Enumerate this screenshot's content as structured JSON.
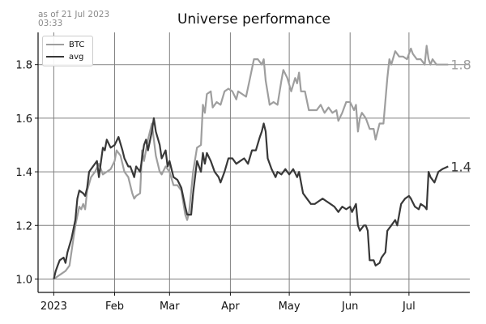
{
  "timestamp": "as of 21 Jul 2023\n03:33",
  "chart_data": {
    "type": "line",
    "title": "Universe performance",
    "xlabel": "",
    "ylabel": "",
    "x_start": "2023-01-01",
    "x_end": "2023-07-21",
    "xlim": [
      "2022-12-24",
      "2023-08-01"
    ],
    "ylim": [
      0.95,
      1.92
    ],
    "x_ticks": [
      {
        "date": "2023-01-01",
        "label": "2023"
      },
      {
        "date": "2023-02-01",
        "label": "Feb"
      },
      {
        "date": "2023-03-01",
        "label": "Mar"
      },
      {
        "date": "2023-04-01",
        "label": "Apr"
      },
      {
        "date": "2023-05-01",
        "label": "May"
      },
      {
        "date": "2023-06-01",
        "label": "Jun"
      },
      {
        "date": "2023-07-01",
        "label": "Jul"
      }
    ],
    "y_ticks": [
      1.0,
      1.2,
      1.4,
      1.6,
      1.8
    ],
    "y_tick_labels": [
      "1.0",
      "1.2",
      "1.4",
      "1.6",
      "1.8"
    ],
    "grid": true,
    "legend_position": "top-left",
    "series": [
      {
        "name": "BTC",
        "color": "#9e9e9e",
        "end_label": "1.8",
        "points": [
          [
            "2023-01-01",
            1.0
          ],
          [
            "2023-01-03",
            1.01
          ],
          [
            "2023-01-05",
            1.02
          ],
          [
            "2023-01-07",
            1.03
          ],
          [
            "2023-01-09",
            1.05
          ],
          [
            "2023-01-10",
            1.1
          ],
          [
            "2023-01-12",
            1.2
          ],
          [
            "2023-01-14",
            1.27
          ],
          [
            "2023-01-15",
            1.26
          ],
          [
            "2023-01-16",
            1.28
          ],
          [
            "2023-01-17",
            1.26
          ],
          [
            "2023-01-18",
            1.33
          ],
          [
            "2023-01-20",
            1.38
          ],
          [
            "2023-01-22",
            1.4
          ],
          [
            "2023-01-24",
            1.43
          ],
          [
            "2023-01-26",
            1.39
          ],
          [
            "2023-01-28",
            1.4
          ],
          [
            "2023-01-30",
            1.41
          ],
          [
            "2023-02-01",
            1.44
          ],
          [
            "2023-02-02",
            1.48
          ],
          [
            "2023-02-04",
            1.46
          ],
          [
            "2023-02-06",
            1.4
          ],
          [
            "2023-02-08",
            1.38
          ],
          [
            "2023-02-10",
            1.32
          ],
          [
            "2023-02-11",
            1.3
          ],
          [
            "2023-02-12",
            1.31
          ],
          [
            "2023-02-14",
            1.32
          ],
          [
            "2023-02-15",
            1.48
          ],
          [
            "2023-02-16",
            1.44
          ],
          [
            "2023-02-18",
            1.52
          ],
          [
            "2023-02-20",
            1.58
          ],
          [
            "2023-02-22",
            1.46
          ],
          [
            "2023-02-24",
            1.4
          ],
          [
            "2023-02-25",
            1.39
          ],
          [
            "2023-02-27",
            1.42
          ],
          [
            "2023-03-01",
            1.4
          ],
          [
            "2023-03-03",
            1.35
          ],
          [
            "2023-03-05",
            1.35
          ],
          [
            "2023-03-07",
            1.33
          ],
          [
            "2023-03-09",
            1.24
          ],
          [
            "2023-03-10",
            1.22
          ],
          [
            "2023-03-11",
            1.25
          ],
          [
            "2023-03-13",
            1.4
          ],
          [
            "2023-03-15",
            1.49
          ],
          [
            "2023-03-17",
            1.5
          ],
          [
            "2023-03-18",
            1.65
          ],
          [
            "2023-03-19",
            1.62
          ],
          [
            "2023-03-20",
            1.69
          ],
          [
            "2023-03-22",
            1.7
          ],
          [
            "2023-03-23",
            1.64
          ],
          [
            "2023-03-25",
            1.66
          ],
          [
            "2023-03-27",
            1.65
          ],
          [
            "2023-03-29",
            1.7
          ],
          [
            "2023-03-31",
            1.71
          ],
          [
            "2023-04-02",
            1.7
          ],
          [
            "2023-04-04",
            1.67
          ],
          [
            "2023-04-05",
            1.7
          ],
          [
            "2023-04-07",
            1.69
          ],
          [
            "2023-04-09",
            1.68
          ],
          [
            "2023-04-11",
            1.75
          ],
          [
            "2023-04-13",
            1.82
          ],
          [
            "2023-04-15",
            1.82
          ],
          [
            "2023-04-17",
            1.8
          ],
          [
            "2023-04-18",
            1.82
          ],
          [
            "2023-04-19",
            1.74
          ],
          [
            "2023-04-21",
            1.65
          ],
          [
            "2023-04-23",
            1.66
          ],
          [
            "2023-04-25",
            1.65
          ],
          [
            "2023-04-27",
            1.74
          ],
          [
            "2023-04-28",
            1.78
          ],
          [
            "2023-04-30",
            1.75
          ],
          [
            "2023-05-02",
            1.7
          ],
          [
            "2023-05-04",
            1.75
          ],
          [
            "2023-05-05",
            1.73
          ],
          [
            "2023-05-06",
            1.77
          ],
          [
            "2023-05-07",
            1.7
          ],
          [
            "2023-05-09",
            1.7
          ],
          [
            "2023-05-11",
            1.63
          ],
          [
            "2023-05-13",
            1.63
          ],
          [
            "2023-05-15",
            1.63
          ],
          [
            "2023-05-17",
            1.65
          ],
          [
            "2023-05-19",
            1.62
          ],
          [
            "2023-05-21",
            1.64
          ],
          [
            "2023-05-23",
            1.62
          ],
          [
            "2023-05-25",
            1.63
          ],
          [
            "2023-05-26",
            1.59
          ],
          [
            "2023-05-28",
            1.62
          ],
          [
            "2023-05-30",
            1.66
          ],
          [
            "2023-06-01",
            1.66
          ],
          [
            "2023-06-03",
            1.63
          ],
          [
            "2023-06-04",
            1.65
          ],
          [
            "2023-06-05",
            1.55
          ],
          [
            "2023-06-06",
            1.6
          ],
          [
            "2023-06-07",
            1.62
          ],
          [
            "2023-06-09",
            1.6
          ],
          [
            "2023-06-11",
            1.56
          ],
          [
            "2023-06-13",
            1.56
          ],
          [
            "2023-06-14",
            1.52
          ],
          [
            "2023-06-16",
            1.58
          ],
          [
            "2023-06-18",
            1.58
          ],
          [
            "2023-06-20",
            1.75
          ],
          [
            "2023-06-21",
            1.82
          ],
          [
            "2023-06-22",
            1.8
          ],
          [
            "2023-06-24",
            1.85
          ],
          [
            "2023-06-26",
            1.83
          ],
          [
            "2023-06-28",
            1.83
          ],
          [
            "2023-06-30",
            1.82
          ],
          [
            "2023-07-02",
            1.86
          ],
          [
            "2023-07-03",
            1.84
          ],
          [
            "2023-07-05",
            1.82
          ],
          [
            "2023-07-07",
            1.82
          ],
          [
            "2023-07-09",
            1.8
          ],
          [
            "2023-07-10",
            1.87
          ],
          [
            "2023-07-11",
            1.82
          ],
          [
            "2023-07-12",
            1.8
          ],
          [
            "2023-07-13",
            1.82
          ],
          [
            "2023-07-15",
            1.8
          ],
          [
            "2023-07-17",
            1.8
          ],
          [
            "2023-07-19",
            1.8
          ],
          [
            "2023-07-21",
            1.8
          ]
        ]
      },
      {
        "name": "avg",
        "color": "#383838",
        "end_label": "1.4",
        "points": [
          [
            "2023-01-01",
            1.0
          ],
          [
            "2023-01-02",
            1.03
          ],
          [
            "2023-01-03",
            1.05
          ],
          [
            "2023-01-04",
            1.07
          ],
          [
            "2023-01-06",
            1.08
          ],
          [
            "2023-01-07",
            1.06
          ],
          [
            "2023-01-08",
            1.1
          ],
          [
            "2023-01-10",
            1.15
          ],
          [
            "2023-01-12",
            1.22
          ],
          [
            "2023-01-13",
            1.3
          ],
          [
            "2023-01-14",
            1.33
          ],
          [
            "2023-01-16",
            1.32
          ],
          [
            "2023-01-17",
            1.31
          ],
          [
            "2023-01-18",
            1.34
          ],
          [
            "2023-01-19",
            1.4
          ],
          [
            "2023-01-21",
            1.42
          ],
          [
            "2023-01-23",
            1.44
          ],
          [
            "2023-01-24",
            1.38
          ],
          [
            "2023-01-26",
            1.49
          ],
          [
            "2023-01-27",
            1.48
          ],
          [
            "2023-01-28",
            1.52
          ],
          [
            "2023-01-30",
            1.49
          ],
          [
            "2023-02-01",
            1.5
          ],
          [
            "2023-02-03",
            1.53
          ],
          [
            "2023-02-05",
            1.48
          ],
          [
            "2023-02-06",
            1.45
          ],
          [
            "2023-02-08",
            1.42
          ],
          [
            "2023-02-09",
            1.42
          ],
          [
            "2023-02-11",
            1.38
          ],
          [
            "2023-02-12",
            1.42
          ],
          [
            "2023-02-14",
            1.4
          ],
          [
            "2023-02-16",
            1.5
          ],
          [
            "2023-02-17",
            1.52
          ],
          [
            "2023-02-18",
            1.48
          ],
          [
            "2023-02-20",
            1.55
          ],
          [
            "2023-02-21",
            1.6
          ],
          [
            "2023-02-22",
            1.55
          ],
          [
            "2023-02-24",
            1.5
          ],
          [
            "2023-02-25",
            1.45
          ],
          [
            "2023-02-27",
            1.48
          ],
          [
            "2023-02-28",
            1.42
          ],
          [
            "2023-03-01",
            1.44
          ],
          [
            "2023-03-03",
            1.38
          ],
          [
            "2023-03-05",
            1.37
          ],
          [
            "2023-03-07",
            1.34
          ],
          [
            "2023-03-09",
            1.27
          ],
          [
            "2023-03-10",
            1.24
          ],
          [
            "2023-03-12",
            1.24
          ],
          [
            "2023-03-13",
            1.32
          ],
          [
            "2023-03-15",
            1.44
          ],
          [
            "2023-03-17",
            1.4
          ],
          [
            "2023-03-18",
            1.47
          ],
          [
            "2023-03-19",
            1.43
          ],
          [
            "2023-03-20",
            1.47
          ],
          [
            "2023-03-22",
            1.44
          ],
          [
            "2023-03-24",
            1.4
          ],
          [
            "2023-03-26",
            1.38
          ],
          [
            "2023-03-27",
            1.36
          ],
          [
            "2023-03-29",
            1.4
          ],
          [
            "2023-03-31",
            1.45
          ],
          [
            "2023-04-02",
            1.45
          ],
          [
            "2023-04-04",
            1.43
          ],
          [
            "2023-04-06",
            1.44
          ],
          [
            "2023-04-08",
            1.45
          ],
          [
            "2023-04-10",
            1.43
          ],
          [
            "2023-04-12",
            1.48
          ],
          [
            "2023-04-14",
            1.48
          ],
          [
            "2023-04-16",
            1.53
          ],
          [
            "2023-04-17",
            1.55
          ],
          [
            "2023-04-18",
            1.58
          ],
          [
            "2023-04-19",
            1.55
          ],
          [
            "2023-04-20",
            1.45
          ],
          [
            "2023-04-22",
            1.41
          ],
          [
            "2023-04-24",
            1.38
          ],
          [
            "2023-04-25",
            1.4
          ],
          [
            "2023-04-27",
            1.39
          ],
          [
            "2023-04-29",
            1.41
          ],
          [
            "2023-05-01",
            1.39
          ],
          [
            "2023-05-03",
            1.41
          ],
          [
            "2023-05-05",
            1.38
          ],
          [
            "2023-05-06",
            1.4
          ],
          [
            "2023-05-08",
            1.32
          ],
          [
            "2023-05-10",
            1.3
          ],
          [
            "2023-05-12",
            1.28
          ],
          [
            "2023-05-14",
            1.28
          ],
          [
            "2023-05-16",
            1.29
          ],
          [
            "2023-05-18",
            1.3
          ],
          [
            "2023-05-20",
            1.29
          ],
          [
            "2023-05-22",
            1.28
          ],
          [
            "2023-05-24",
            1.27
          ],
          [
            "2023-05-26",
            1.25
          ],
          [
            "2023-05-28",
            1.27
          ],
          [
            "2023-05-30",
            1.26
          ],
          [
            "2023-06-01",
            1.27
          ],
          [
            "2023-06-02",
            1.25
          ],
          [
            "2023-06-04",
            1.28
          ],
          [
            "2023-06-05",
            1.2
          ],
          [
            "2023-06-06",
            1.18
          ],
          [
            "2023-06-08",
            1.2
          ],
          [
            "2023-06-09",
            1.2
          ],
          [
            "2023-06-10",
            1.18
          ],
          [
            "2023-06-11",
            1.07
          ],
          [
            "2023-06-13",
            1.07
          ],
          [
            "2023-06-14",
            1.05
          ],
          [
            "2023-06-16",
            1.06
          ],
          [
            "2023-06-17",
            1.08
          ],
          [
            "2023-06-19",
            1.1
          ],
          [
            "2023-06-20",
            1.18
          ],
          [
            "2023-06-22",
            1.2
          ],
          [
            "2023-06-24",
            1.22
          ],
          [
            "2023-06-25",
            1.2
          ],
          [
            "2023-06-27",
            1.28
          ],
          [
            "2023-06-29",
            1.3
          ],
          [
            "2023-07-01",
            1.31
          ],
          [
            "2023-07-02",
            1.3
          ],
          [
            "2023-07-04",
            1.27
          ],
          [
            "2023-07-06",
            1.26
          ],
          [
            "2023-07-07",
            1.28
          ],
          [
            "2023-07-09",
            1.27
          ],
          [
            "2023-07-10",
            1.26
          ],
          [
            "2023-07-11",
            1.4
          ],
          [
            "2023-07-12",
            1.38
          ],
          [
            "2023-07-14",
            1.36
          ],
          [
            "2023-07-16",
            1.4
          ],
          [
            "2023-07-18",
            1.41
          ],
          [
            "2023-07-21",
            1.42
          ]
        ]
      }
    ]
  }
}
